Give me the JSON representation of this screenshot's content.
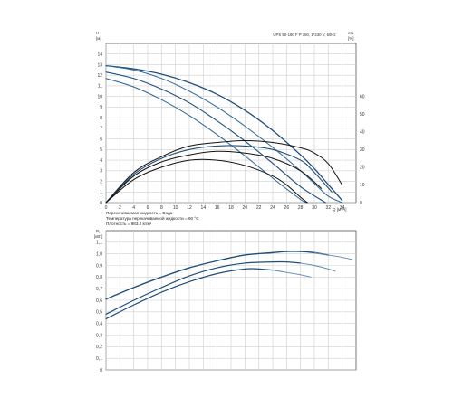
{
  "chart_data": [
    {
      "type": "line",
      "title": "UPS 50-180 F P 380, 1*230 V, 50Hz",
      "x_axis": {
        "label": "Q [м³/ч]",
        "range": [
          0,
          36
        ],
        "ticks": [
          "0",
          "2",
          "4",
          "6",
          "8",
          "10",
          "12",
          "14",
          "16",
          "18",
          "20",
          "22",
          "24",
          "26",
          "28",
          "30",
          "32",
          "34"
        ]
      },
      "y_axis_left": {
        "label_top": "H",
        "label_unit": "[м]",
        "range": [
          0,
          15
        ],
        "ticks": [
          "0",
          "1",
          "2",
          "3",
          "4",
          "5",
          "6",
          "7",
          "8",
          "9",
          "10",
          "11",
          "12",
          "13",
          "14"
        ]
      },
      "y_axis_right": {
        "label_top": "eta",
        "label_unit": "[%]",
        "range": [
          0,
          90
        ],
        "ticks": [
          "0",
          "10",
          "20",
          "30",
          "40",
          "50",
          "60"
        ]
      },
      "grid": true,
      "series": [
        {
          "kind": "head",
          "color": "#1f4e79",
          "width": 1.3,
          "x": [
            0,
            4,
            8,
            12,
            16,
            20,
            24,
            28,
            30,
            32,
            34
          ],
          "y": [
            12.9,
            12.6,
            12.1,
            11.3,
            10.2,
            8.7,
            6.8,
            4.5,
            3.2,
            1.7,
            0.2
          ]
        },
        {
          "kind": "head",
          "color": "#2b6596",
          "width": 1.0,
          "x": [
            0,
            4,
            8,
            12,
            16,
            20,
            24,
            28,
            30,
            32,
            34
          ],
          "y": [
            12.9,
            12.5,
            11.7,
            10.5,
            9.0,
            7.2,
            5.2,
            3.0,
            1.8,
            0.6,
            0
          ]
        },
        {
          "kind": "head",
          "color": "#1f4e79",
          "width": 1.1,
          "x": [
            0,
            4,
            8,
            12,
            16,
            20,
            24,
            28,
            31.6
          ],
          "y": [
            12.3,
            11.7,
            10.7,
            9.4,
            7.7,
            5.8,
            3.7,
            1.5,
            0
          ]
        },
        {
          "kind": "head",
          "color": "#2b6596",
          "width": 1.0,
          "x": [
            0,
            4,
            8,
            12,
            16,
            20,
            24,
            28,
            29
          ],
          "y": [
            11.7,
            10.9,
            9.7,
            8.2,
            6.4,
            4.4,
            2.3,
            0.3,
            0
          ]
        },
        {
          "kind": "efficiency",
          "color": "#111111",
          "width": 1.0,
          "x": [
            0,
            4,
            8,
            12,
            16,
            20,
            24,
            28,
            30,
            32,
            34
          ],
          "y": [
            0,
            17,
            26,
            32,
            34,
            35,
            34,
            31,
            28,
            22,
            10
          ]
        },
        {
          "kind": "efficiency",
          "color": "#1f4e79",
          "width": 1.1,
          "x": [
            0,
            4,
            8,
            12,
            16,
            20,
            24,
            28,
            30,
            32.5
          ],
          "y": [
            0,
            16,
            25,
            30,
            32,
            32,
            30,
            24,
            17,
            6
          ]
        },
        {
          "kind": "efficiency",
          "color": "#111111",
          "width": 1.0,
          "x": [
            0,
            4,
            8,
            12,
            16,
            20,
            24,
            28,
            31
          ],
          "y": [
            0,
            15,
            23,
            27,
            29,
            28,
            25,
            18,
            8
          ]
        },
        {
          "kind": "efficiency",
          "color": "#111111",
          "width": 1.0,
          "x": [
            0,
            4,
            8,
            12,
            16,
            20,
            24,
            26,
            28,
            29
          ],
          "y": [
            0,
            13,
            20,
            24,
            24,
            21,
            15,
            10,
            3,
            0
          ]
        }
      ],
      "annotations": [
        "Перекачиваемая жидкость = Вода",
        "Температура перекачиваемой жидкости = 60 °C",
        "Плотность = 983.2 кг/м³"
      ]
    },
    {
      "type": "line",
      "x_axis": {
        "range": [
          0,
          36
        ],
        "ticks": []
      },
      "y_axis_left": {
        "label_top": "P₁",
        "label_unit": "[кВт]",
        "range": [
          0,
          1.2
        ],
        "ticks": [
          "0",
          "0,1",
          "0,2",
          "0,3",
          "0,4",
          "0,5",
          "0,6",
          "0,7",
          "0,8",
          "0,9",
          "1,0",
          "1,1"
        ]
      },
      "grid": true,
      "series": [
        {
          "kind": "power",
          "color": "#1f4e79",
          "width": 1.4,
          "x": [
            0,
            4,
            8,
            12,
            16,
            20,
            24,
            26,
            28,
            30,
            32
          ],
          "y": [
            0.61,
            0.71,
            0.8,
            0.88,
            0.94,
            0.99,
            1.01,
            1.02,
            1.02,
            1.01,
            0.99
          ]
        },
        {
          "kind": "power",
          "color": "#5b87b3",
          "width": 0.9,
          "x": [
            30,
            32,
            34,
            35.5
          ],
          "y": [
            1.01,
            0.99,
            0.97,
            0.95
          ]
        },
        {
          "kind": "power",
          "color": "#1f4e79",
          "width": 1.2,
          "x": [
            0,
            4,
            8,
            12,
            16,
            20,
            24,
            26,
            28
          ],
          "y": [
            0.48,
            0.6,
            0.71,
            0.81,
            0.88,
            0.92,
            0.93,
            0.93,
            0.92
          ]
        },
        {
          "kind": "power",
          "color": "#5b87b3",
          "width": 0.9,
          "x": [
            28,
            30,
            32,
            33
          ],
          "y": [
            0.92,
            0.9,
            0.87,
            0.85
          ]
        },
        {
          "kind": "power",
          "color": "#1f4e79",
          "width": 1.2,
          "x": [
            0,
            4,
            8,
            12,
            16,
            20,
            22,
            24
          ],
          "y": [
            0.44,
            0.56,
            0.67,
            0.76,
            0.83,
            0.87,
            0.87,
            0.86
          ]
        },
        {
          "kind": "power",
          "color": "#5b87b3",
          "width": 0.9,
          "x": [
            24,
            26,
            28,
            29.5
          ],
          "y": [
            0.86,
            0.84,
            0.82,
            0.8
          ]
        }
      ]
    }
  ]
}
